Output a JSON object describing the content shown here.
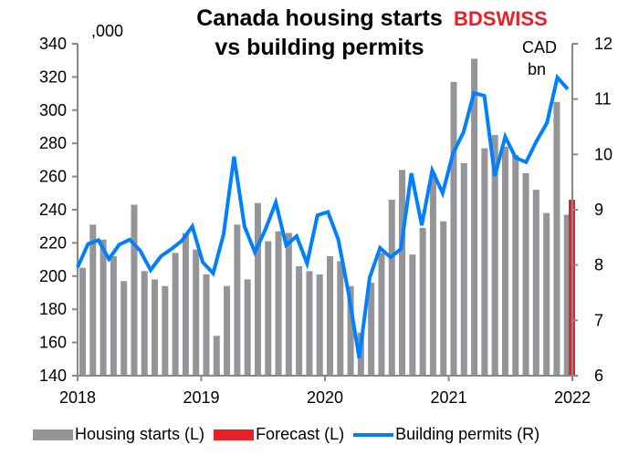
{
  "chart_data": {
    "type": "bar+line",
    "title": "Canada housing starts vs building permits",
    "title_lines": [
      "Canada housing starts",
      "vs building permits"
    ],
    "left_unit": ",000",
    "right_unit_lines": [
      "CAD",
      "bn"
    ],
    "left_axis": {
      "range": [
        140,
        340
      ],
      "ticks": [
        "140",
        "160",
        "180",
        "200",
        "220",
        "240",
        "260",
        "280",
        "300",
        "320",
        "340"
      ]
    },
    "right_axis": {
      "range": [
        6,
        12
      ],
      "ticks": [
        "6",
        "7",
        "8",
        "9",
        "10",
        "11",
        "12"
      ]
    },
    "x_ticks": [
      "2018",
      "2019",
      "2020",
      "2021",
      "2022"
    ],
    "x_start": "2018-01",
    "x_end": "2022-01",
    "grid": false,
    "legend_placement": "bottom",
    "series": [
      {
        "name": "Housing starts (L)",
        "type": "bar",
        "axis": "left",
        "color": "#939598",
        "start": "2018-01",
        "values": [
          205,
          231,
          222,
          212,
          197,
          243,
          203,
          198,
          194,
          214,
          226,
          216,
          201,
          164,
          194,
          231,
          198,
          244,
          221,
          227,
          226,
          206,
          203,
          201,
          212,
          209,
          194,
          166,
          196,
          214,
          246,
          264,
          213,
          229,
          262,
          233,
          317,
          268,
          331,
          277,
          285,
          278,
          273,
          262,
          252,
          238,
          305,
          237
        ]
      },
      {
        "name": "Forecast (L)",
        "type": "bar",
        "axis": "left",
        "color": "#e8202a",
        "start": "2022-01",
        "values": [
          246
        ]
      },
      {
        "name": "Building permits (R)",
        "type": "line",
        "axis": "right",
        "color": "#0080ff",
        "start": "2018-01",
        "values": [
          7.96,
          8.38,
          8.45,
          8.11,
          8.37,
          8.46,
          8.26,
          7.91,
          8.16,
          8.29,
          8.44,
          8.7,
          8.05,
          7.85,
          8.56,
          9.96,
          8.7,
          8.23,
          8.64,
          9.13,
          8.36,
          8.52,
          8.03,
          8.9,
          8.96,
          8.46,
          7.47,
          6.32,
          7.77,
          8.31,
          8.14,
          8.29,
          9.66,
          8.72,
          9.71,
          9.3,
          10.02,
          10.4,
          11.11,
          11.06,
          9.61,
          10.32,
          9.94,
          9.86,
          10.24,
          10.57,
          11.39,
          11.18
        ]
      }
    ]
  },
  "logo": "BDSWISS"
}
